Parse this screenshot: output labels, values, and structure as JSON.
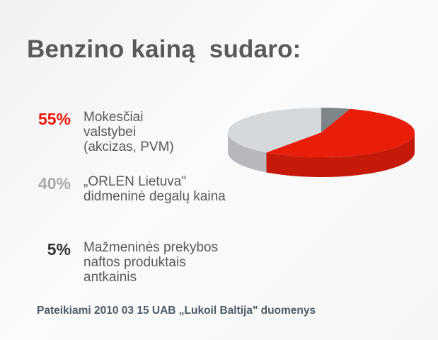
{
  "title": "Benzino kainą  sudaro:",
  "items": [
    {
      "percent": "55%",
      "label": "Mokesčiai valstybei (akcizas, PVM)",
      "color": "#e8180c"
    },
    {
      "percent": "40%",
      "label": "„ORLEN Lietuva\" didmeninė degalų kaina",
      "color": "#a7a9ac"
    },
    {
      "percent": "5%",
      "label": "Mažmeninės prekybos naftos produktais antkainis",
      "color": "#333333"
    }
  ],
  "footer": "Pateikiami 2010 03 15 UAB  „Lukoil Baltija\" duomenys",
  "chart_data": {
    "type": "pie",
    "style": "3d",
    "start": "top, clockwise",
    "slices": [
      {
        "label": "Mažmeninės prekybos naftos produktais antkainis",
        "value": 5,
        "color": "#7d8588"
      },
      {
        "label": "Mokesčiai valstybei (akcizas, PVM)",
        "value": 55,
        "color": "#e81e0a"
      },
      {
        "label": "„ORLEN Lietuva\" didmeninė degalų kaina",
        "value": 40,
        "color": "#d6d9dc"
      }
    ]
  }
}
